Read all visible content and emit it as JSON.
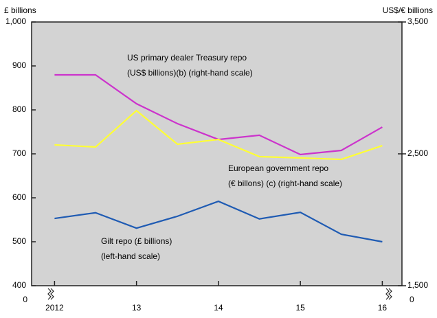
{
  "chart_data": {
    "type": "line",
    "y_axis_label": "£ billions",
    "y2_axis_label": "US$/€ billions",
    "x": [
      2012,
      2012.5,
      2013,
      2013.5,
      2014,
      2014.5,
      2015,
      2015.5,
      2016
    ],
    "xlim": [
      2011.72,
      2016.24
    ],
    "xticks": [
      {
        "value": 2012,
        "label": "2012"
      },
      {
        "value": 2013,
        "label": "13"
      },
      {
        "value": 2014,
        "label": "14"
      },
      {
        "value": 2015,
        "label": "15"
      },
      {
        "value": 2016,
        "label": "16"
      }
    ],
    "ylim": [
      400,
      1000
    ],
    "yticks": [
      400,
      500,
      600,
      700,
      800,
      900,
      {
        "value": 1000,
        "label": "1,000"
      }
    ],
    "y2lim": [
      1500,
      3500
    ],
    "y2ticks": [
      {
        "value": 1500,
        "label": "1,500"
      },
      {
        "value": 2500,
        "label": "2,500"
      },
      {
        "value": 3500,
        "label": "3,500"
      }
    ],
    "axis_break_labels": [
      "0",
      "0"
    ],
    "series": [
      {
        "name": "US primary dealer Treasury repo",
        "axis": "y2",
        "color": "#cc33cc",
        "values": [
          3099,
          3099,
          2880,
          2729,
          2609,
          2641,
          2495,
          2526,
          2703
        ]
      },
      {
        "name": "European government repo",
        "axis": "y2",
        "color": "#ffff33",
        "values": [
          2568,
          2552,
          2828,
          2573,
          2609,
          2479,
          2469,
          2458,
          2562
        ]
      },
      {
        "name": "Gilt repo",
        "color": "#1f5bb3",
        "values": [
          553,
          566,
          531,
          558,
          592,
          552,
          567,
          517,
          500
        ]
      }
    ],
    "annotations": [
      {
        "lines": [
          "US primary dealer Treasury repo",
          "(US$ billions)(b) (right-hand scale)"
        ]
      },
      {
        "lines": [
          "European government repo",
          "(€ billons) (c) (right-hand scale)"
        ]
      },
      {
        "lines": [
          "Gilt repo (£ billions)",
          "(left-hand scale)"
        ]
      }
    ]
  }
}
